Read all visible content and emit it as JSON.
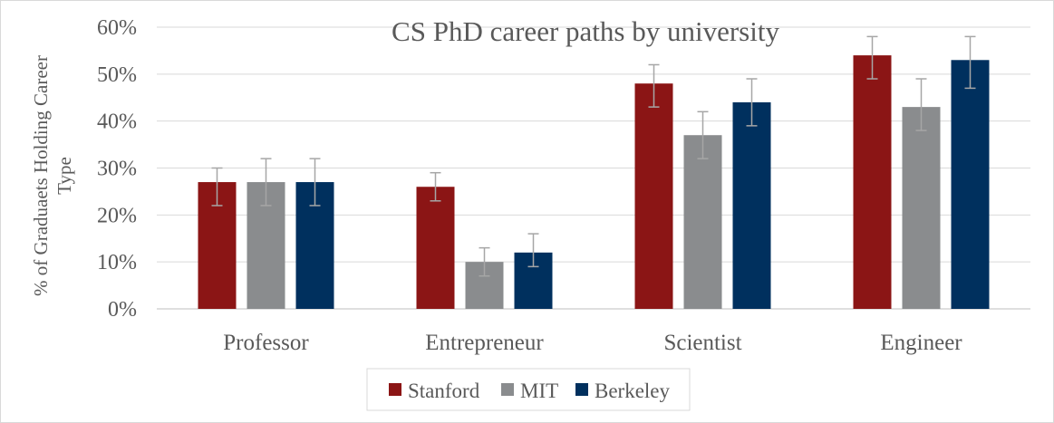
{
  "chart_data": {
    "type": "bar",
    "title": "CS PhD career paths by university",
    "ylabel_lines": [
      "% of Graduaets Holding Career",
      "Type"
    ],
    "xlabel": "",
    "categories": [
      "Professor",
      "Entrepreneur",
      "Scientist",
      "Engineer"
    ],
    "ylim": [
      0,
      60
    ],
    "ytick_labels": [
      "0%",
      "10%",
      "20%",
      "30%",
      "40%",
      "50%",
      "60%"
    ],
    "grid": true,
    "legend_position": "bottom",
    "series": [
      {
        "name": "Stanford",
        "color": "#8b1515",
        "values": [
          27,
          26,
          48,
          54
        ],
        "err_low": [
          5,
          3,
          5,
          5
        ],
        "err_high": [
          3,
          3,
          4,
          4
        ]
      },
      {
        "name": "MIT",
        "color": "#8a8c8e",
        "values": [
          27,
          10,
          37,
          43
        ],
        "err_low": [
          5,
          3,
          5,
          5
        ],
        "err_high": [
          5,
          3,
          5,
          6
        ]
      },
      {
        "name": "Berkeley",
        "color": "#00305e",
        "values": [
          27,
          12,
          44,
          53
        ],
        "err_low": [
          5,
          3,
          5,
          6
        ],
        "err_high": [
          5,
          4,
          5,
          5
        ]
      }
    ]
  }
}
